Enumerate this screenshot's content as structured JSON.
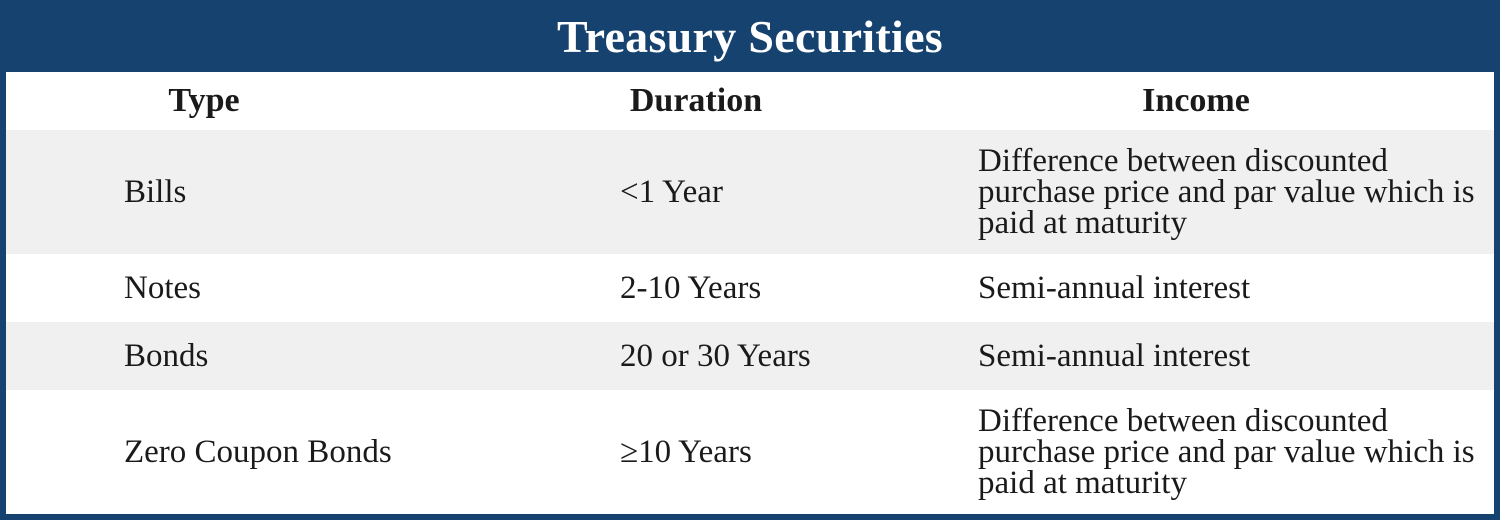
{
  "title": "Treasury Securities",
  "colors": {
    "frame": "#16426f",
    "title_text": "#ffffff",
    "row_shade": "#f0f0f0",
    "row_plain": "#ffffff"
  },
  "columns": [
    "Type",
    "Duration",
    "Income"
  ],
  "rows": [
    {
      "type": "Bills",
      "duration": "<1 Year",
      "income": "Difference between discounted purchase price and par value which is paid at maturity"
    },
    {
      "type": "Notes",
      "duration": "2-10 Years",
      "income": "Semi-annual interest"
    },
    {
      "type": "Bonds",
      "duration": "20 or 30 Years",
      "income": "Semi-annual interest"
    },
    {
      "type": "Zero Coupon Bonds",
      "duration": "≥10 Years",
      "income": "Difference between discounted purchase price and par value which is paid at maturity"
    }
  ]
}
